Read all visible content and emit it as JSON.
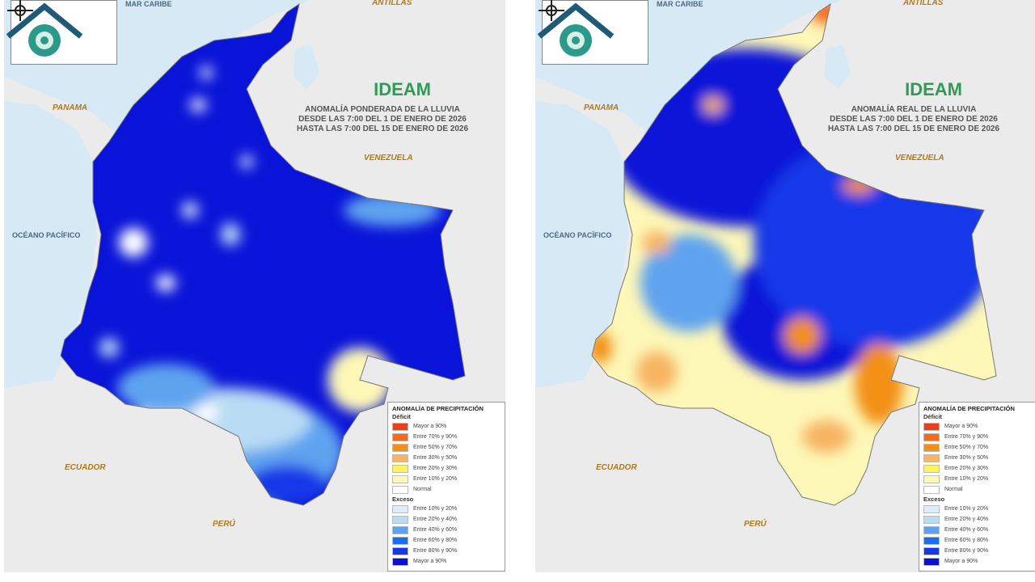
{
  "maps": [
    {
      "title_lines": [
        "ANOMALÍA PONDERADA DE LA LLUVIA",
        "DESDE LAS 7:00 DEL 1 DE ENERO DE 2026",
        "HASTA LAS 7:00 DEL 15 DE ENERO DE 2026"
      ],
      "variant": "weighted"
    },
    {
      "title_lines": [
        "ANOMALÍA REAL DE LA LLUVIA",
        "DESDE LAS 7:00 DEL 1 DE ENERO DE 2026",
        "HASTA LAS 7:00 DEL 15 DE ENERO DE 2026"
      ],
      "variant": "real"
    }
  ],
  "logo_text": "IDEAM",
  "place_labels": {
    "antillas": "ANTILLAS",
    "mar_caribe": "MAR CARIBE",
    "panama": "PANAMA",
    "venezuela": "VENEZUELA",
    "oceano": "OCÉANO PACÍFICO",
    "ecuador": "ECUADOR",
    "peru": "PERÚ"
  },
  "compass": {
    "n": "N",
    "w": "W",
    "e": "E",
    "s": "S"
  },
  "legend": {
    "title": "ANOMALÍA DE PRECIPITACIÓN",
    "deficit_label": "Déficit",
    "deficit": [
      {
        "label": "Mayor a 90%",
        "color": "#e8401c"
      },
      {
        "label": "Entre 70% y 90%",
        "color": "#f46a1e"
      },
      {
        "label": "Entre 50% y 70%",
        "color": "#f39019"
      },
      {
        "label": "Entre 30% y 50%",
        "color": "#f7b462"
      },
      {
        "label": "Entre 20% y 30%",
        "color": "#fbf45a"
      },
      {
        "label": "Entre 10% y 20%",
        "color": "#fdf7b8"
      }
    ],
    "normal": {
      "label": "Normal",
      "color": "#ffffff"
    },
    "excess_label": "Exceso",
    "excess": [
      {
        "label": "Entre 10% y 20%",
        "color": "#dcecfa"
      },
      {
        "label": "Entre 20% y 40%",
        "color": "#b9dcf5"
      },
      {
        "label": "Entre 40% y 60%",
        "color": "#5fa3ef"
      },
      {
        "label": "Entre 60% y 80%",
        "color": "#1a6ff0"
      },
      {
        "label": "Entre 80% y 90%",
        "color": "#1437e8"
      },
      {
        "label": "Mayor a 90%",
        "color": "#0a0fd6"
      }
    ]
  }
}
